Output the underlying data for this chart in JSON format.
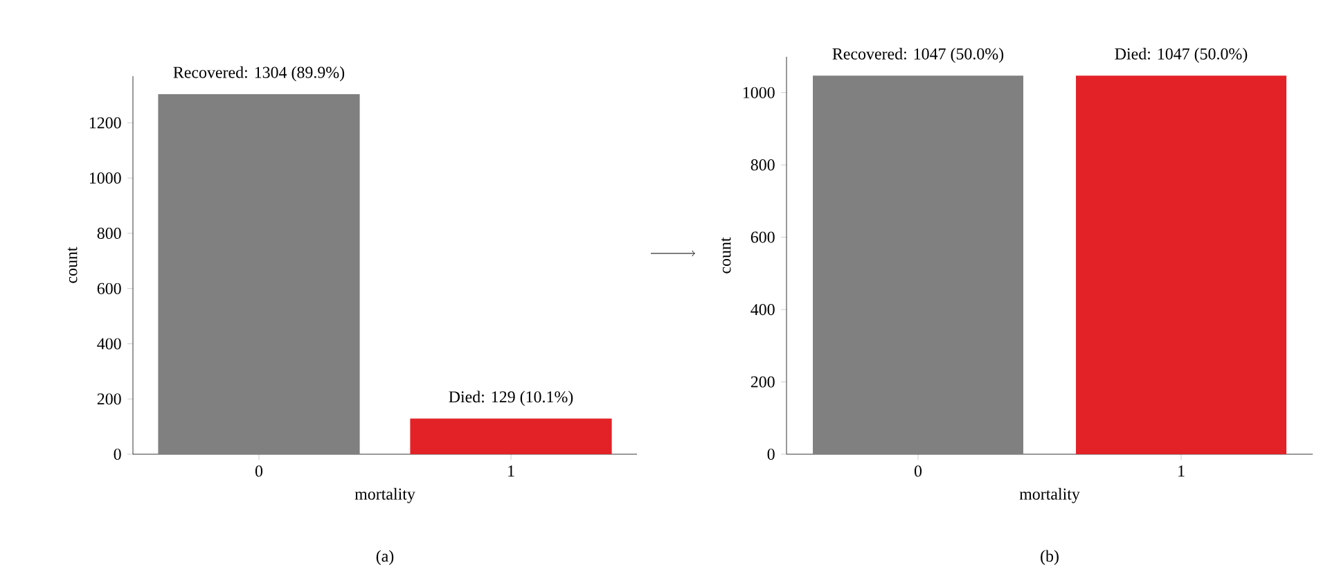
{
  "chart_data": [
    {
      "type": "bar",
      "categories": [
        "0",
        "1"
      ],
      "values": [
        1304,
        129
      ],
      "colors": [
        "#808080",
        "#e32228"
      ],
      "xlabel": "mortality",
      "ylabel": "count",
      "ylim": [
        0,
        1369
      ],
      "yticks": [
        0,
        200,
        400,
        600,
        800,
        1000,
        1200
      ],
      "annotations": [
        {
          "text": "Recovered: 1304 (89.9%)",
          "x": "0",
          "y": 1304
        },
        {
          "text": "Died: 129 (10.1%)",
          "x": "1",
          "y": 129
        },
        "(a)"
      ]
    },
    {
      "type": "bar",
      "categories": [
        "0",
        "1"
      ],
      "values": [
        1047,
        1047
      ],
      "colors": [
        "#808080",
        "#e32228"
      ],
      "xlabel": "mortality",
      "ylabel": "count",
      "ylim": [
        0,
        1099
      ],
      "yticks": [
        0,
        200,
        400,
        600,
        800,
        1000
      ],
      "annotations": [
        {
          "text": "Recovered: 1047 (50.0%)",
          "x": "0",
          "y": 1047
        },
        {
          "text": "Died: 1047 (50.0%)",
          "x": "1",
          "y": 1047
        },
        "(b)"
      ]
    }
  ]
}
